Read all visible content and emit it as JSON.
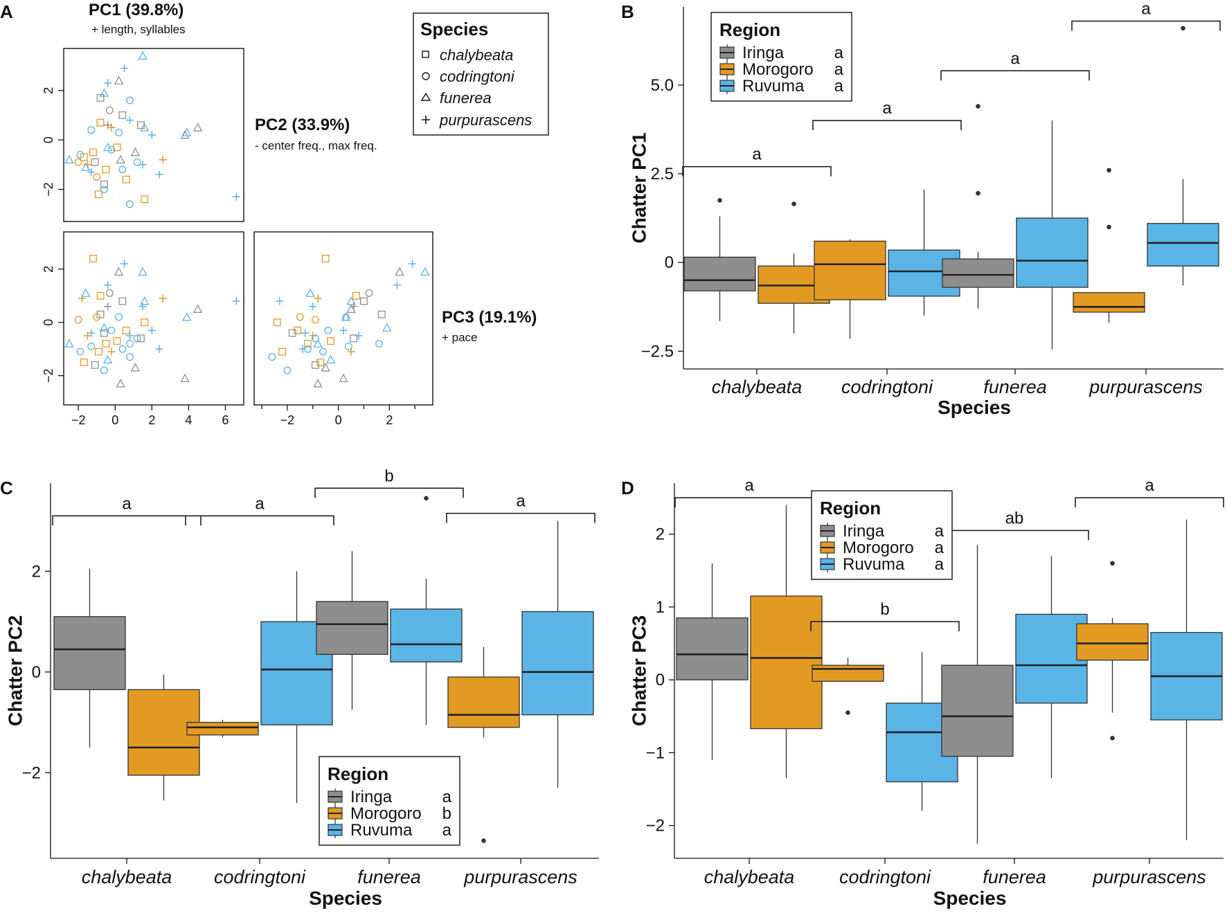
{
  "colors": {
    "Iringa": "#8e8e8e",
    "Morogoro": "#e39a22",
    "Ruvuma": "#5ab4e5",
    "axis": "#111111"
  },
  "chart_data": [
    {
      "id": "A",
      "type": "scatter",
      "panel_letter": "A",
      "variables": [
        {
          "title": "PC1 (39.8%)",
          "subtitle": "+ length, syllables"
        },
        {
          "title": "PC2 (33.9%)",
          "subtitle": "- center freq., max freq."
        },
        {
          "title": "PC3 (19.1%)",
          "subtitle": "+ pace"
        }
      ],
      "ticks": {
        "pc1": [
          -2,
          0,
          2,
          4,
          6
        ],
        "pc2": [
          -2,
          0,
          2
        ],
        "pc3": [
          -2,
          0,
          2
        ]
      },
      "ranges": {
        "pc1": [
          -2.8,
          7.0
        ],
        "pc2": [
          -3.3,
          3.7
        ],
        "pc3": [
          -3.1,
          3.4
        ]
      },
      "legend": {
        "title": "Species",
        "items": [
          {
            "label": "chalybeata",
            "marker": "square"
          },
          {
            "label": "codringtoni",
            "marker": "circle"
          },
          {
            "label": "funerea",
            "marker": "triangle"
          },
          {
            "label": "purpurascens",
            "marker": "plus"
          }
        ]
      },
      "points": [
        {
          "region": "Ruvuma",
          "species": "funerea",
          "pc1": 1.5,
          "pc2": 3.4,
          "pc3": 1.9
        },
        {
          "region": "Ruvuma",
          "species": "purpurascens",
          "pc1": 0.5,
          "pc2": 2.9,
          "pc3": 2.2
        },
        {
          "region": "Iringa",
          "species": "funerea",
          "pc1": 0.2,
          "pc2": 2.4,
          "pc3": 1.9
        },
        {
          "region": "Ruvuma",
          "species": "purpurascens",
          "pc1": -0.4,
          "pc2": 2.3,
          "pc3": 1.4
        },
        {
          "region": "Ruvuma",
          "species": "funerea",
          "pc1": -0.6,
          "pc2": 1.9,
          "pc3": -0.2
        },
        {
          "region": "Iringa",
          "species": "chalybeata",
          "pc1": -0.8,
          "pc2": 1.7,
          "pc3": 0.3
        },
        {
          "region": "Ruvuma",
          "species": "codringtoni",
          "pc1": 0.8,
          "pc2": 1.6,
          "pc3": -0.8
        },
        {
          "region": "Iringa",
          "species": "funerea",
          "pc1": 3.8,
          "pc2": 0.2,
          "pc3": -2.1
        },
        {
          "region": "Iringa",
          "species": "funerea",
          "pc1": 4.5,
          "pc2": 0.5,
          "pc3": 0.5
        },
        {
          "region": "Ruvuma",
          "species": "funerea",
          "pc1": 3.9,
          "pc2": 0.3,
          "pc3": 0.2
        },
        {
          "region": "Ruvuma",
          "species": "purpurascens",
          "pc1": 6.6,
          "pc2": -2.3,
          "pc3": 0.8
        },
        {
          "region": "Ruvuma",
          "species": "purpurascens",
          "pc1": 2.4,
          "pc2": -1.4,
          "pc3": -1.0
        },
        {
          "region": "Morogoro",
          "species": "purpurascens",
          "pc1": -1.8,
          "pc2": -3.3,
          "pc3": 0.9
        },
        {
          "region": "Morogoro",
          "species": "purpurascens",
          "pc1": 2.6,
          "pc2": -0.8,
          "pc3": 0.9
        },
        {
          "region": "Morogoro",
          "species": "chalybeata",
          "pc1": 1.6,
          "pc2": -2.4,
          "pc3": 0.0
        },
        {
          "region": "Morogoro",
          "species": "chalybeata",
          "pc1": -1.7,
          "pc2": -0.7,
          "pc3": -1.5
        },
        {
          "region": "Morogoro",
          "species": "chalybeata",
          "pc1": -0.9,
          "pc2": -2.2,
          "pc3": -1.1
        },
        {
          "region": "Morogoro",
          "species": "codringtoni",
          "pc1": -1.0,
          "pc2": -1.5,
          "pc3": 0.2
        },
        {
          "region": "Morogoro",
          "species": "chalybeata",
          "pc1": -0.5,
          "pc2": -1.2,
          "pc3": -0.8
        },
        {
          "region": "Morogoro",
          "species": "purpurascens",
          "pc1": -1.5,
          "pc2": -1.0,
          "pc3": -0.5
        },
        {
          "region": "Morogoro",
          "species": "chalybeata",
          "pc1": -1.2,
          "pc2": -0.5,
          "pc3": 2.4
        },
        {
          "region": "Morogoro",
          "species": "codringtoni",
          "pc1": -2.0,
          "pc2": -0.9,
          "pc3": 0.1
        },
        {
          "region": "Morogoro",
          "species": "chalybeata",
          "pc1": 0.1,
          "pc2": -0.3,
          "pc3": -0.7
        },
        {
          "region": "Morogoro",
          "species": "purpurascens",
          "pc1": -0.2,
          "pc2": 0.5,
          "pc3": -1.1
        },
        {
          "region": "Morogoro",
          "species": "chalybeata",
          "pc1": -0.8,
          "pc2": 0.7,
          "pc3": 1.0
        },
        {
          "region": "Morogoro",
          "species": "chalybeata",
          "pc1": 0.6,
          "pc2": -1.6,
          "pc3": -0.3
        },
        {
          "region": "Iringa",
          "species": "chalybeata",
          "pc1": -1.1,
          "pc2": -0.9,
          "pc3": -1.6
        },
        {
          "region": "Iringa",
          "species": "codringtoni",
          "pc1": -0.3,
          "pc2": 1.2,
          "pc3": 1.1
        },
        {
          "region": "Iringa",
          "species": "funerea",
          "pc1": 1.1,
          "pc2": -0.5,
          "pc3": -1.7
        },
        {
          "region": "Iringa",
          "species": "chalybeata",
          "pc1": 1.4,
          "pc2": 0.6,
          "pc3": -0.6
        },
        {
          "region": "Iringa",
          "species": "chalybeata",
          "pc1": -0.6,
          "pc2": -1.8,
          "pc3": -0.4
        },
        {
          "region": "Iringa",
          "species": "funerea",
          "pc1": 0.3,
          "pc2": -0.8,
          "pc3": -2.3
        },
        {
          "region": "Ruvuma",
          "species": "codringtoni",
          "pc1": -0.6,
          "pc2": -2.0,
          "pc3": -1.8
        },
        {
          "region": "Ruvuma",
          "species": "codringtoni",
          "pc1": 0.8,
          "pc2": -2.6,
          "pc3": -1.3
        },
        {
          "region": "Ruvuma",
          "species": "codringtoni",
          "pc1": -1.9,
          "pc2": -0.6,
          "pc3": -1.1
        },
        {
          "region": "Ruvuma",
          "species": "codringtoni",
          "pc1": 0.4,
          "pc2": -1.2,
          "pc3": -1.0
        },
        {
          "region": "Ruvuma",
          "species": "codringtoni",
          "pc1": -1.3,
          "pc2": 0.4,
          "pc3": -0.9
        },
        {
          "region": "Ruvuma",
          "species": "codringtoni",
          "pc1": 1.2,
          "pc2": -0.9,
          "pc3": -0.6
        },
        {
          "region": "Ruvuma",
          "species": "codringtoni",
          "pc1": -0.2,
          "pc2": -0.4,
          "pc3": -0.3
        },
        {
          "region": "Ruvuma",
          "species": "codringtoni",
          "pc1": 0.2,
          "pc2": 0.3,
          "pc3": 0.2
        },
        {
          "region": "Ruvuma",
          "species": "funerea",
          "pc1": -2.5,
          "pc2": -0.8,
          "pc3": -0.8
        },
        {
          "region": "Ruvuma",
          "species": "funerea",
          "pc1": -1.6,
          "pc2": -1.1,
          "pc3": 1.1
        },
        {
          "region": "Ruvuma",
          "species": "funerea",
          "pc1": 1.6,
          "pc2": 0.5,
          "pc3": 0.8
        },
        {
          "region": "Ruvuma",
          "species": "funerea",
          "pc1": -0.4,
          "pc2": -0.3,
          "pc3": -1.4
        },
        {
          "region": "Ruvuma",
          "species": "purpurascens",
          "pc1": -1.3,
          "pc2": -1.3,
          "pc3": -0.4
        },
        {
          "region": "Ruvuma",
          "species": "purpurascens",
          "pc1": 1.5,
          "pc2": -1.0,
          "pc3": 0.6
        },
        {
          "region": "Ruvuma",
          "species": "purpurascens",
          "pc1": 2.0,
          "pc2": 0.2,
          "pc3": -0.3
        },
        {
          "region": "Ruvuma",
          "species": "purpurascens",
          "pc1": 0.8,
          "pc2": 0.8,
          "pc3": -0.5
        },
        {
          "region": "Iringa",
          "species": "purpurascens",
          "pc1": -0.4,
          "pc2": 0.6,
          "pc3": 0.6
        },
        {
          "region": "Iringa",
          "species": "chalybeata",
          "pc1": 0.4,
          "pc2": 1.0,
          "pc3": 0.8
        }
      ]
    },
    {
      "id": "B",
      "type": "box",
      "panel_letter": "B",
      "ylabel": "Chatter PC1",
      "xlabel": "Species",
      "categories": [
        "chalybeata",
        "codringtoni",
        "funerea",
        "purpurascens"
      ],
      "ylim": [
        -3.0,
        7.2
      ],
      "yticks": [
        "-2.5",
        "0",
        "2.5",
        "5.0"
      ],
      "ytick_values": [
        -2.5,
        0,
        2.5,
        5.0
      ],
      "legend": {
        "title": "Region",
        "items": [
          {
            "label": "Iringa",
            "sig": "a"
          },
          {
            "label": "Morogoro",
            "sig": "a"
          },
          {
            "label": "Ruvuma",
            "sig": "a"
          }
        ]
      },
      "significance": [
        "a",
        "a",
        "a",
        "a"
      ],
      "bracket_y": [
        2.7,
        4.0,
        5.4,
        6.8
      ],
      "boxes": [
        {
          "cat": 0,
          "region": "Iringa",
          "min": -1.65,
          "q1": -0.8,
          "median": -0.5,
          "q3": 0.15,
          "max": 1.3,
          "outliers": [
            1.75
          ]
        },
        {
          "cat": 0,
          "region": "Morogoro",
          "min": -2.0,
          "q1": -1.15,
          "median": -0.65,
          "q3": -0.1,
          "max": 0.25,
          "outliers": [
            1.65
          ]
        },
        {
          "cat": 1,
          "region": "Morogoro",
          "min": -2.15,
          "q1": -1.05,
          "median": -0.05,
          "q3": 0.6,
          "max": 0.65,
          "outliers": []
        },
        {
          "cat": 1,
          "region": "Ruvuma",
          "min": -1.5,
          "q1": -0.95,
          "median": -0.25,
          "q3": 0.35,
          "max": 2.05,
          "outliers": []
        },
        {
          "cat": 2,
          "region": "Iringa",
          "min": -1.3,
          "q1": -0.7,
          "median": -0.35,
          "q3": 0.1,
          "max": 0.3,
          "outliers": [
            1.95,
            4.4
          ]
        },
        {
          "cat": 2,
          "region": "Ruvuma",
          "min": -2.45,
          "q1": -0.7,
          "median": 0.05,
          "q3": 1.25,
          "max": 4.0,
          "outliers": []
        },
        {
          "cat": 3,
          "region": "Morogoro",
          "min": -1.7,
          "q1": -1.4,
          "median": -1.25,
          "q3": -0.85,
          "max": -0.85,
          "outliers": [
            2.6,
            1.0
          ]
        },
        {
          "cat": 3,
          "region": "Ruvuma",
          "min": -0.65,
          "q1": -0.1,
          "median": 0.55,
          "q3": 1.1,
          "max": 2.35,
          "outliers": [
            6.6
          ]
        }
      ]
    },
    {
      "id": "C",
      "type": "box",
      "panel_letter": "C",
      "ylabel": "Chatter PC2",
      "xlabel": "Species",
      "categories": [
        "chalybeata",
        "codringtoni",
        "funerea",
        "purpurascens"
      ],
      "ylim": [
        -3.7,
        3.75
      ],
      "yticks": [
        "-2",
        "0",
        "2"
      ],
      "ytick_values": [
        -2,
        0,
        2
      ],
      "legend": {
        "title": "Region",
        "items": [
          {
            "label": "Iringa",
            "sig": "a"
          },
          {
            "label": "Morogoro",
            "sig": "b"
          },
          {
            "label": "Ruvuma",
            "sig": "a"
          }
        ]
      },
      "significance": [
        "a",
        "a",
        "b",
        "a"
      ],
      "bracket_y": [
        3.1,
        3.1,
        3.65,
        3.15
      ],
      "boxes": [
        {
          "cat": 0,
          "region": "Iringa",
          "min": -1.5,
          "q1": -0.35,
          "median": 0.45,
          "q3": 1.1,
          "max": 2.05,
          "outliers": []
        },
        {
          "cat": 0,
          "region": "Morogoro",
          "min": -2.55,
          "q1": -2.05,
          "median": -1.5,
          "q3": -0.35,
          "max": -0.05,
          "outliers": []
        },
        {
          "cat": 1,
          "region": "Morogoro",
          "min": -1.3,
          "q1": -1.25,
          "median": -1.1,
          "q3": -1.0,
          "max": -0.95,
          "outliers": []
        },
        {
          "cat": 1,
          "region": "Ruvuma",
          "min": -2.6,
          "q1": -1.05,
          "median": 0.05,
          "q3": 1.0,
          "max": 2.0,
          "outliers": []
        },
        {
          "cat": 2,
          "region": "Iringa",
          "min": -0.75,
          "q1": 0.35,
          "median": 0.95,
          "q3": 1.4,
          "max": 2.4,
          "outliers": []
        },
        {
          "cat": 2,
          "region": "Ruvuma",
          "min": -1.05,
          "q1": 0.2,
          "median": 0.55,
          "q3": 1.25,
          "max": 1.85,
          "outliers": [
            3.45
          ]
        },
        {
          "cat": 3,
          "region": "Morogoro",
          "min": -1.3,
          "q1": -1.1,
          "median": -0.85,
          "q3": -0.1,
          "max": 0.5,
          "outliers": [
            -3.35
          ]
        },
        {
          "cat": 3,
          "region": "Ruvuma",
          "min": -2.3,
          "q1": -0.85,
          "median": 0.0,
          "q3": 1.2,
          "max": 3.0,
          "outliers": []
        }
      ]
    },
    {
      "id": "D",
      "type": "box",
      "panel_letter": "D",
      "ylabel": "Chatter PC3",
      "xlabel": "Species",
      "categories": [
        "chalybeata",
        "codringtoni",
        "funerea",
        "purpurascens"
      ],
      "ylim": [
        -2.45,
        2.7
      ],
      "yticks": [
        "-2",
        "-1",
        "0",
        "1",
        "2"
      ],
      "ytick_values": [
        -2,
        -1,
        0,
        1,
        2
      ],
      "legend": {
        "title": "Region",
        "items": [
          {
            "label": "Iringa",
            "sig": "a"
          },
          {
            "label": "Morogoro",
            "sig": "a"
          },
          {
            "label": "Ruvuma",
            "sig": "a"
          }
        ]
      },
      "significance": [
        "a",
        "b",
        "ab",
        "a"
      ],
      "bracket_y": [
        2.5,
        0.8,
        2.05,
        2.5
      ],
      "boxes": [
        {
          "cat": 0,
          "region": "Iringa",
          "min": -1.1,
          "q1": 0.0,
          "median": 0.35,
          "q3": 0.85,
          "max": 1.6,
          "outliers": []
        },
        {
          "cat": 0,
          "region": "Morogoro",
          "min": -1.35,
          "q1": -0.67,
          "median": 0.3,
          "q3": 1.15,
          "max": 2.4,
          "outliers": []
        },
        {
          "cat": 1,
          "region": "Morogoro",
          "min": -0.02,
          "q1": -0.02,
          "median": 0.15,
          "q3": 0.2,
          "max": 0.3,
          "outliers": [
            -0.45
          ]
        },
        {
          "cat": 1,
          "region": "Ruvuma",
          "min": -1.8,
          "q1": -1.4,
          "median": -0.72,
          "q3": -0.32,
          "max": 0.38,
          "outliers": []
        },
        {
          "cat": 2,
          "region": "Iringa",
          "min": -2.25,
          "q1": -1.05,
          "median": -0.5,
          "q3": 0.2,
          "max": 1.85,
          "outliers": []
        },
        {
          "cat": 2,
          "region": "Ruvuma",
          "min": -1.35,
          "q1": -0.32,
          "median": 0.2,
          "q3": 0.9,
          "max": 1.7,
          "outliers": []
        },
        {
          "cat": 3,
          "region": "Morogoro",
          "min": -0.45,
          "q1": 0.27,
          "median": 0.5,
          "q3": 0.77,
          "max": 0.85,
          "outliers": [
            1.6,
            -0.8
          ]
        },
        {
          "cat": 3,
          "region": "Ruvuma",
          "min": -2.2,
          "q1": -0.55,
          "median": 0.05,
          "q3": 0.65,
          "max": 2.2,
          "outliers": []
        }
      ]
    }
  ]
}
